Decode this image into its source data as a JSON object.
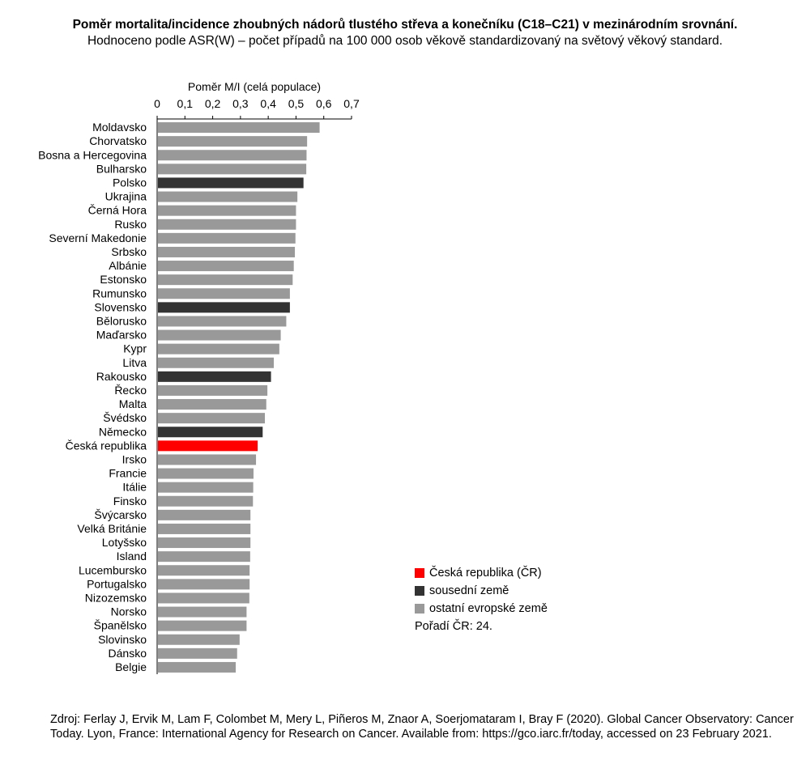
{
  "title": "Poměr mortalita/incidence zhoubných nádorů tlustého střeva a konečníku (C18–C21) v mezinárodním srovnání.",
  "subtitle": "Hodnoceno podle ASR(W) – počet případů na 100 000 osob věkově standardizovaný na světový věkový standard.",
  "legend": {
    "items": [
      {
        "label": "Česká republika (ČR)",
        "color": "#ff0000"
      },
      {
        "label": "sousední země",
        "color": "#333333"
      },
      {
        "label": "ostatní evropské země",
        "color": "#999999"
      }
    ],
    "rank_text": "Pořadí ČR: 24."
  },
  "source": "Zdroj: Ferlay J, Ervik M, Lam F, Colombet M, Mery L, Piñeros M, Znaor A, Soerjomataram I, Bray F (2020). Global Cancer Observatory: Cancer Today. Lyon, France: International Agency for Research on Cancer. Available from: https://gco.iarc.fr/today, accessed on 23 February 2021.",
  "chart_data": {
    "type": "bar",
    "orientation": "horizontal",
    "xlabel": "Poměr M/I (celá populace)",
    "ylabel": "",
    "xlim": [
      0,
      0.7
    ],
    "xticks": [
      "0",
      "0,1",
      "0,2",
      "0,3",
      "0,4",
      "0,5",
      "0,6",
      "0,7"
    ],
    "axis_position": "top",
    "grid": false,
    "legend_position": "bottom-right",
    "colors": {
      "cz": "#ff0000",
      "neighbor": "#333333",
      "other": "#999999"
    },
    "categories": [
      "Moldavsko",
      "Chorvatsko",
      "Bosna a Hercegovina",
      "Bulharsko",
      "Polsko",
      "Ukrajina",
      "Černá Hora",
      "Rusko",
      "Severní Makedonie",
      "Srbsko",
      "Albánie",
      "Estonsko",
      "Rumunsko",
      "Slovensko",
      "Bělorusko",
      "Maďarsko",
      "Kypr",
      "Litva",
      "Rakousko",
      "Řecko",
      "Malta",
      "Švédsko",
      "Německo",
      "Česká republika",
      "Irsko",
      "Francie",
      "Itálie",
      "Finsko",
      "Švýcarsko",
      "Velká Británie",
      "Lotyšsko",
      "Island",
      "Lucembursko",
      "Portugalsko",
      "Nizozemsko",
      "Norsko",
      "Španělsko",
      "Slovinsko",
      "Dánsko",
      "Belgie"
    ],
    "values": [
      0.585,
      0.54,
      0.538,
      0.537,
      0.527,
      0.505,
      0.5,
      0.5,
      0.498,
      0.496,
      0.492,
      0.488,
      0.478,
      0.478,
      0.465,
      0.445,
      0.44,
      0.42,
      0.41,
      0.397,
      0.393,
      0.388,
      0.38,
      0.362,
      0.356,
      0.347,
      0.346,
      0.345,
      0.336,
      0.336,
      0.336,
      0.335,
      0.333,
      0.333,
      0.332,
      0.322,
      0.322,
      0.297,
      0.288,
      0.283
    ],
    "groups": [
      "other",
      "other",
      "other",
      "other",
      "neighbor",
      "other",
      "other",
      "other",
      "other",
      "other",
      "other",
      "other",
      "other",
      "neighbor",
      "other",
      "other",
      "other",
      "other",
      "neighbor",
      "other",
      "other",
      "other",
      "neighbor",
      "cz",
      "other",
      "other",
      "other",
      "other",
      "other",
      "other",
      "other",
      "other",
      "other",
      "other",
      "other",
      "other",
      "other",
      "other",
      "other",
      "other"
    ]
  }
}
